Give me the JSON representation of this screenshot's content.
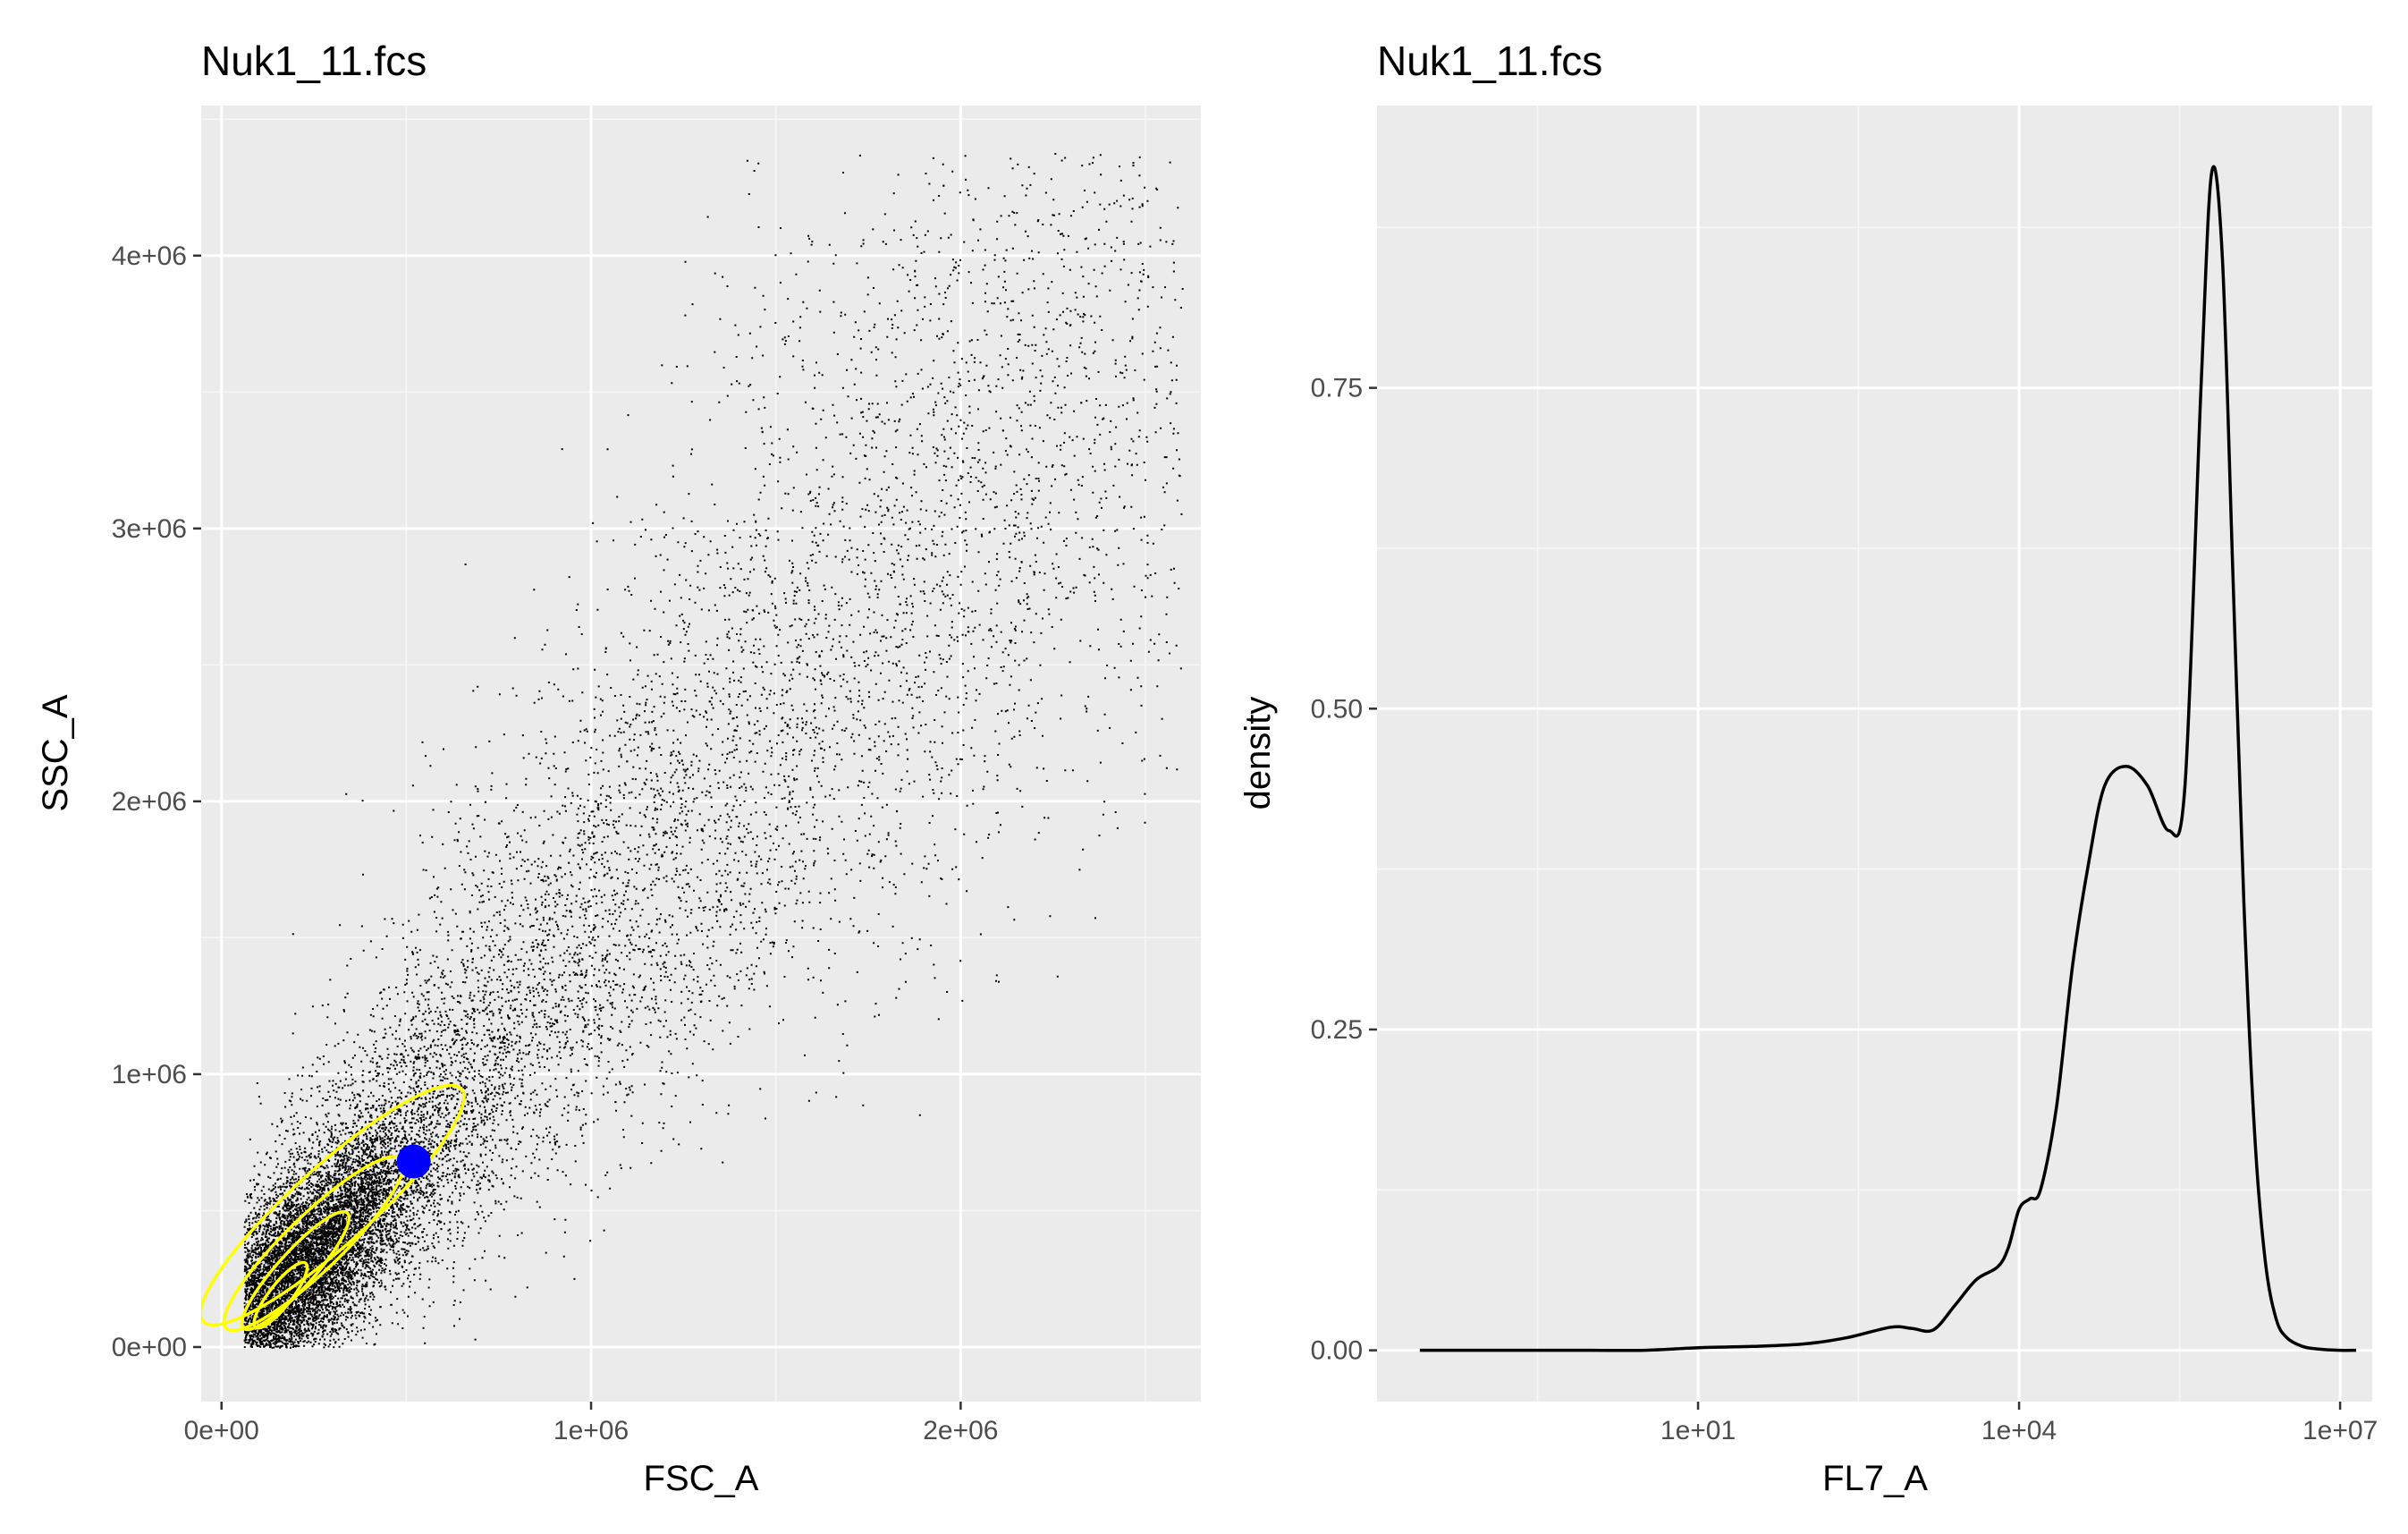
{
  "chart_data": [
    {
      "type": "scatter",
      "title": "Nuk1_11.fcs",
      "xlabel": "FSC_A",
      "ylabel": "SSC_A",
      "xlim": [
        -55000.0,
        2650000.0
      ],
      "ylim": [
        -200000.0,
        4550000.0
      ],
      "x_ticks": [
        0,
        1000000,
        2000000
      ],
      "x_tick_labels": [
        "0e+00",
        "1e+06",
        "2e+06"
      ],
      "y_ticks": [
        0,
        1000000,
        2000000,
        3000000,
        4000000
      ],
      "y_tick_labels": [
        "0e+00",
        "1e+06",
        "2e+06",
        "3e+06",
        "4e+06"
      ],
      "grid": true,
      "point_color": "#000000",
      "point_count_note": "dense cloud of events, main population centered near FSC 0.3e6 / SSC 0.5e6 spreading diagonally to FSC 2.6e6 / SSC 4.4e6",
      "centroid": {
        "x": 520000,
        "y": 680000,
        "color": "#0000ff"
      },
      "contours": {
        "color": "#ffff00",
        "levels": [
          {
            "cx": 300000,
            "cy": 520000,
            "rx": 470000,
            "ry": 260000,
            "angle_deg": 42
          },
          {
            "cx": 250000,
            "cy": 380000,
            "rx": 330000,
            "ry": 185000,
            "angle_deg": 44
          },
          {
            "cx": 200000,
            "cy": 280000,
            "rx": 210000,
            "ry": 120000,
            "angle_deg": 48
          },
          {
            "cx": 160000,
            "cy": 190000,
            "rx": 110000,
            "ry": 75000,
            "angle_deg": 52
          }
        ]
      }
    },
    {
      "type": "line",
      "title": "Nuk1_11.fcs",
      "xlabel": "FL7_A",
      "ylabel": "density",
      "x_scale": "log10",
      "xlim": [
        -2.0,
        7.3
      ],
      "ylim": [
        -0.04,
        0.97
      ],
      "x_ticks": [
        1,
        4,
        7
      ],
      "x_tick_labels": [
        "1e+01",
        "1e+04",
        "1e+07"
      ],
      "y_ticks": [
        0,
        0.25,
        0.5,
        0.75
      ],
      "y_tick_labels": [
        "0.00",
        "0.25",
        "0.50",
        "0.75"
      ],
      "grid": true,
      "line_color": "#000000",
      "series": [
        {
          "x": [
            -1.6,
            -1.0,
            -0.5,
            0.0,
            0.5,
            1.0,
            1.5,
            2.0,
            2.4,
            2.8,
            3.0,
            3.2,
            3.4,
            3.6,
            3.8,
            3.9,
            4.0,
            4.1,
            4.2,
            4.35,
            4.5,
            4.65,
            4.8,
            5.0,
            5.2,
            5.4,
            5.55,
            5.7,
            5.8,
            5.9,
            6.0,
            6.1,
            6.2,
            6.3,
            6.4,
            6.5,
            6.65,
            6.8,
            7.0,
            7.15
          ],
          "y": [
            0,
            0,
            0,
            0,
            0,
            0.002,
            0.003,
            0.005,
            0.01,
            0.018,
            0.017,
            0.016,
            0.035,
            0.055,
            0.065,
            0.08,
            0.11,
            0.118,
            0.125,
            0.19,
            0.3,
            0.38,
            0.44,
            0.455,
            0.44,
            0.405,
            0.44,
            0.75,
            0.918,
            0.85,
            0.6,
            0.35,
            0.17,
            0.07,
            0.025,
            0.01,
            0.003,
            0.001,
            0,
            0
          ]
        }
      ]
    }
  ]
}
